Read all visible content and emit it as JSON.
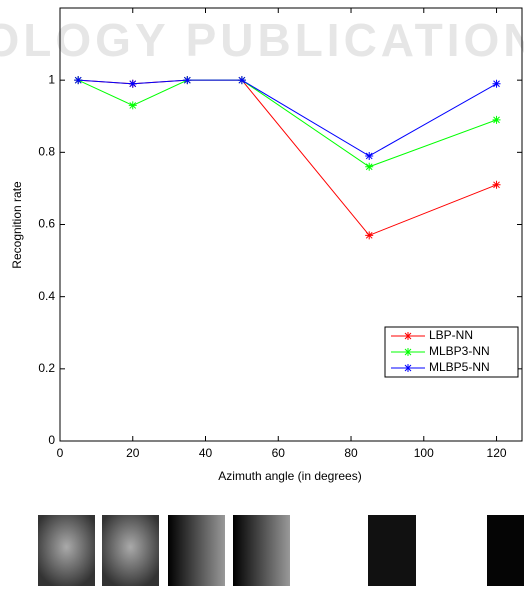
{
  "chart_data": {
    "type": "line",
    "watermark": "OLOGY PUBLICATION",
    "xlabel": "Azimuth angle (in degrees)",
    "ylabel": "Recognition rate",
    "x": [
      5,
      20,
      35,
      50,
      85,
      120
    ],
    "series": [
      {
        "name": "LBP-NN",
        "color": "#ff0000",
        "values": [
          1,
          0.99,
          1,
          1,
          0.57,
          0.71
        ]
      },
      {
        "name": "MLBP3-NN",
        "color": "#00ff00",
        "values": [
          1,
          0.93,
          1,
          1,
          0.76,
          0.89
        ]
      },
      {
        "name": "MLBP5-NN",
        "color": "#0000ff",
        "values": [
          1,
          0.99,
          1,
          1,
          0.79,
          0.99
        ]
      }
    ],
    "xlim": [
      0,
      127
    ],
    "xticks": [
      0,
      20,
      40,
      60,
      80,
      100,
      120
    ],
    "ylim": [
      0,
      1.2
    ],
    "yticks": [
      0,
      0.2,
      0.4,
      0.6,
      0.8,
      1
    ],
    "legend": "lower right"
  }
}
